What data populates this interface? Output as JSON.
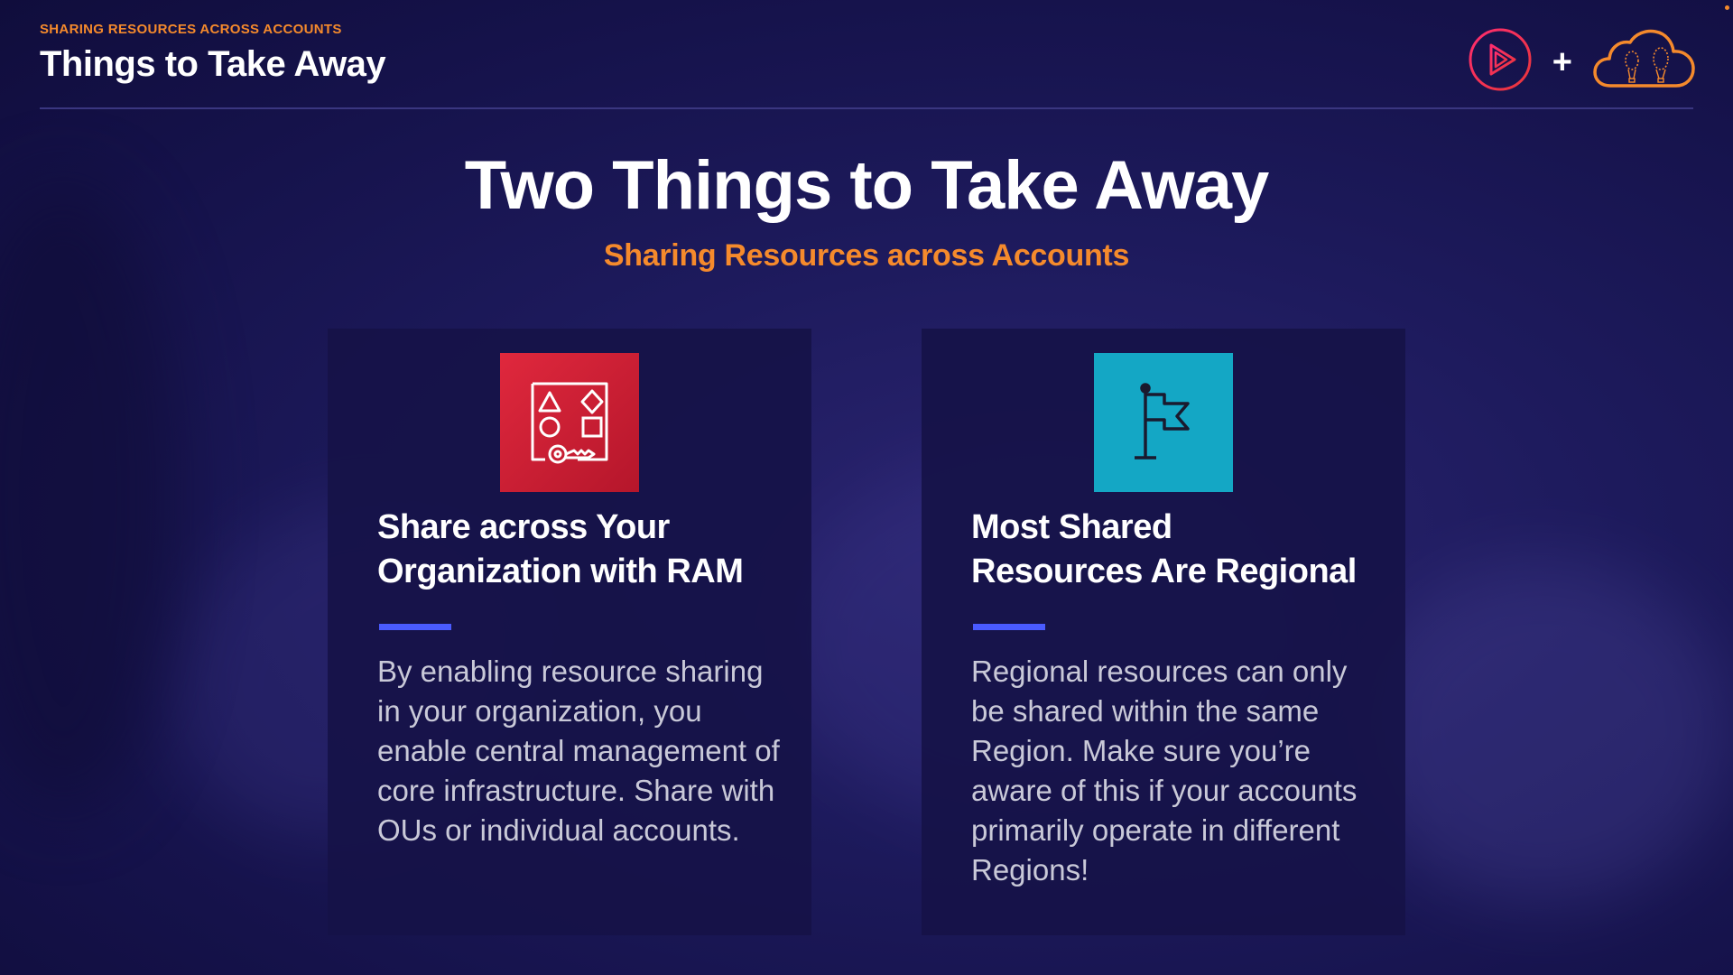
{
  "header": {
    "kicker": "SHARING RESOURCES ACROSS ACCOUNTS",
    "title": "Things to Take Away",
    "plus": "+"
  },
  "logos": {
    "left_icon": "play-circle-icon",
    "right_icon": "cloud-hot-air-balloon-icon"
  },
  "main": {
    "title": "Two Things to Take Away",
    "subtitle": "Sharing Resources across Accounts"
  },
  "cards": [
    {
      "icon": "resource-access-manager-icon",
      "icon_color": "#d91f35",
      "heading_line1": "Share across Your",
      "heading_line2": "Organization with RAM",
      "body": "By enabling resource sharing in your organization, you enable central management of core infrastructure. Share with OUs or individual accounts."
    },
    {
      "icon": "flag-icon",
      "icon_color": "#14a7c5",
      "heading_line1": "Most Shared",
      "heading_line2": "Resources Are Regional",
      "body": "Regional resources can only be shared within the same Region. Make sure you’re aware of this if your accounts primarily operate in different Regions!"
    }
  ],
  "colors": {
    "accent_orange": "#f58a2c",
    "accent_blue": "#4a5bff",
    "background": "#1d1a5c"
  }
}
